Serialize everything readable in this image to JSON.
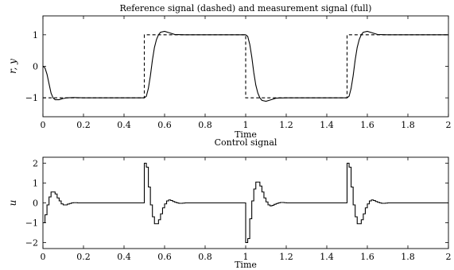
{
  "chart_data": [
    {
      "type": "line",
      "title": "Reference signal (dashed) and measurement signal (full)",
      "xlabel": "Time",
      "ylabel": "r, y",
      "xlim": [
        0,
        2
      ],
      "ylim": [
        -1.6,
        1.6
      ],
      "grid": false,
      "xticks": [
        0,
        0.2,
        0.4,
        0.6,
        0.8,
        1,
        1.2,
        1.4,
        1.6,
        1.8,
        2
      ],
      "xtick_labels": [
        "0",
        "0.2",
        "0.4",
        "0.6",
        "0.8",
        "1",
        "1.2",
        "1.4",
        "1.6",
        "1.8",
        "2"
      ],
      "yticks": [
        -1,
        0,
        1
      ],
      "ytick_labels": [
        "−1",
        "0",
        "1"
      ],
      "series": [
        {
          "style": "dashed",
          "step": true,
          "x": [
            0,
            0.5,
            0.5,
            1.0,
            1.0,
            1.5,
            1.5,
            2.0
          ],
          "y": [
            -1,
            -1,
            1,
            1,
            -1,
            -1,
            1,
            1
          ]
        },
        {
          "style": "solid",
          "step": false,
          "x": [
            0,
            0.01,
            0.02,
            0.03,
            0.04,
            0.05,
            0.06,
            0.08,
            0.1,
            0.12,
            0.15,
            0.2,
            0.5,
            0.51,
            0.52,
            0.53,
            0.54,
            0.55,
            0.56,
            0.57,
            0.58,
            0.6,
            0.62,
            0.65,
            0.7,
            1.0,
            1.01,
            1.02,
            1.03,
            1.04,
            1.05,
            1.06,
            1.07,
            1.08,
            1.1,
            1.12,
            1.15,
            1.2,
            1.5,
            1.51,
            1.52,
            1.53,
            1.54,
            1.55,
            1.56,
            1.57,
            1.58,
            1.6,
            1.62,
            1.65,
            1.7,
            2.0
          ],
          "y": [
            0,
            -0.05,
            -0.25,
            -0.55,
            -0.85,
            -1.0,
            -1.06,
            -1.06,
            -1.02,
            -1.0,
            -0.99,
            -1.0,
            -1.0,
            -0.95,
            -0.7,
            -0.3,
            0.2,
            0.6,
            0.85,
            1.0,
            1.08,
            1.11,
            1.07,
            1.01,
            1.0,
            1.0,
            0.95,
            0.7,
            0.3,
            -0.2,
            -0.6,
            -0.85,
            -1.0,
            -1.08,
            -1.11,
            -1.07,
            -1.01,
            -1.0,
            -1.0,
            -0.95,
            -0.7,
            -0.3,
            0.2,
            0.6,
            0.85,
            1.0,
            1.08,
            1.11,
            1.07,
            1.01,
            1.0,
            1.0
          ]
        }
      ]
    },
    {
      "type": "line",
      "title": "Control signal",
      "xlabel": "Time",
      "ylabel": "u",
      "xlim": [
        0,
        2
      ],
      "ylim": [
        -2.3,
        2.3
      ],
      "grid": false,
      "xticks": [
        0,
        0.2,
        0.4,
        0.6,
        0.8,
        1,
        1.2,
        1.4,
        1.6,
        1.8,
        2
      ],
      "xtick_labels": [
        "0",
        "0.2",
        "0.4",
        "0.6",
        "0.8",
        "1",
        "1.2",
        "1.4",
        "1.6",
        "1.8",
        "2"
      ],
      "yticks": [
        -2,
        -1,
        0,
        1,
        2
      ],
      "ytick_labels": [
        "−2",
        "−1",
        "0",
        "1",
        "2"
      ],
      "series": [
        {
          "style": "solid",
          "step": true,
          "x": [
            0,
            0.01,
            0.02,
            0.03,
            0.04,
            0.05,
            0.06,
            0.07,
            0.08,
            0.09,
            0.1,
            0.11,
            0.12,
            0.13,
            0.14,
            0.15,
            0.16,
            0.17,
            0.18,
            0.19,
            0.2,
            0.5,
            0.51,
            0.52,
            0.53,
            0.54,
            0.55,
            0.56,
            0.57,
            0.58,
            0.59,
            0.6,
            0.61,
            0.62,
            0.63,
            0.64,
            0.65,
            0.66,
            0.67,
            0.68,
            0.69,
            0.7,
            1.0,
            1.01,
            1.02,
            1.03,
            1.04,
            1.05,
            1.06,
            1.07,
            1.08,
            1.09,
            1.1,
            1.11,
            1.12,
            1.13,
            1.14,
            1.15,
            1.16,
            1.17,
            1.18,
            1.19,
            1.2,
            1.5,
            1.51,
            1.52,
            1.53,
            1.54,
            1.55,
            1.56,
            1.57,
            1.58,
            1.59,
            1.6,
            1.61,
            1.62,
            1.63,
            1.64,
            1.65,
            1.66,
            1.67,
            1.68,
            1.69,
            1.7,
            2.0
          ],
          "y": [
            -1.0,
            -0.6,
            -0.1,
            0.3,
            0.55,
            0.55,
            0.45,
            0.25,
            0.1,
            -0.05,
            -0.1,
            -0.1,
            -0.06,
            -0.03,
            0.0,
            0.01,
            0.01,
            0.0,
            0.0,
            0.0,
            0.0,
            2.0,
            1.8,
            0.8,
            -0.1,
            -0.7,
            -1.05,
            -1.05,
            -0.85,
            -0.55,
            -0.25,
            -0.05,
            0.1,
            0.15,
            0.12,
            0.07,
            0.03,
            0.0,
            -0.02,
            -0.02,
            -0.01,
            0.0,
            -2.0,
            -1.8,
            -0.8,
            0.1,
            0.7,
            1.05,
            1.05,
            0.85,
            0.55,
            0.25,
            0.05,
            -0.1,
            -0.15,
            -0.12,
            -0.07,
            -0.03,
            0.0,
            0.02,
            0.02,
            0.01,
            0.0,
            2.0,
            1.8,
            0.8,
            -0.1,
            -0.7,
            -1.05,
            -1.05,
            -0.85,
            -0.55,
            -0.25,
            -0.05,
            0.1,
            0.15,
            0.12,
            0.07,
            0.03,
            0.0,
            -0.02,
            -0.02,
            -0.01,
            0.0,
            0.0
          ]
        }
      ]
    }
  ]
}
